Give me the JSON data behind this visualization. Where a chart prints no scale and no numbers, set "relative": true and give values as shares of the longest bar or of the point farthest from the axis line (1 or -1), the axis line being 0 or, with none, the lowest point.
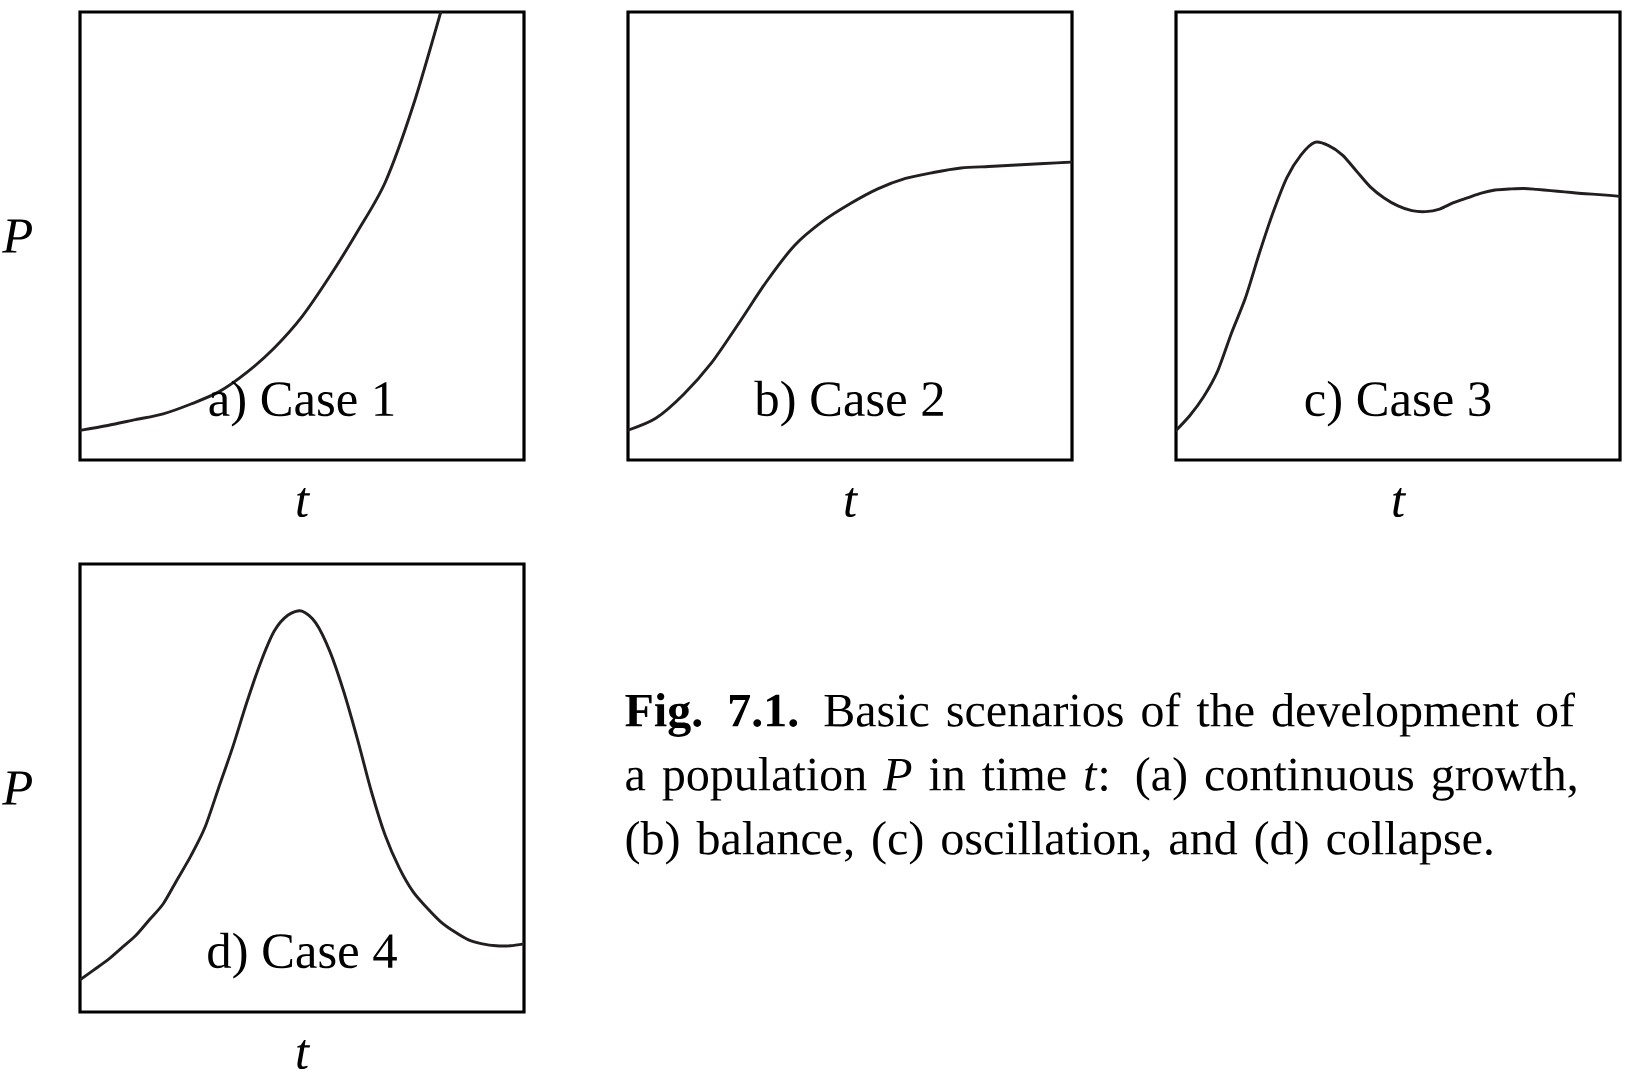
{
  "chart_data": [
    {
      "type": "line",
      "title": "a) Case 1",
      "xlabel": "t",
      "ylabel": "P",
      "relative": true,
      "color": "#231f20",
      "categories": [
        null,
        null,
        null,
        null,
        null,
        null,
        null,
        null,
        null,
        null,
        null,
        null,
        null,
        null,
        null,
        null,
        null
      ],
      "values": [
        0.066,
        0.077,
        0.09,
        0.103,
        0.125,
        0.152,
        0.195,
        0.25,
        0.32,
        0.41,
        0.51,
        0.62,
        0.79,
        1.0,
        null,
        null,
        null
      ]
    },
    {
      "type": "line",
      "title": "b) Case 2",
      "xlabel": "t",
      "relative": true,
      "color": "#231f20",
      "categories": [
        null,
        null,
        null,
        null,
        null,
        null,
        null,
        null,
        null,
        null,
        null,
        null,
        null,
        null,
        null,
        null,
        null
      ],
      "values": [
        0.1,
        0.14,
        0.22,
        0.325,
        0.46,
        0.6,
        0.72,
        0.8,
        0.86,
        0.91,
        0.945,
        0.965,
        0.98,
        0.985,
        0.99,
        0.995,
        1.0
      ]
    },
    {
      "type": "line",
      "title": "c) Case 3",
      "xlabel": "t",
      "relative": true,
      "color": "#231f20",
      "categories": [
        null,
        null,
        null,
        null,
        null,
        null,
        null,
        null,
        null,
        null,
        null,
        null,
        null,
        null,
        null,
        null,
        null,
        null,
        null,
        null,
        null,
        null,
        null,
        null,
        null,
        null,
        null,
        null,
        null,
        null,
        null,
        null,
        null
      ],
      "values": [
        0.093,
        0.14,
        0.2,
        0.28,
        0.4,
        0.51,
        0.65,
        0.78,
        0.89,
        0.96,
        1.0,
        0.99,
        0.96,
        0.91,
        0.86,
        0.825,
        0.8,
        0.785,
        0.782,
        0.79,
        0.81,
        0.825,
        0.84,
        0.85,
        0.853,
        0.855,
        0.852,
        0.848,
        0.844,
        0.84,
        0.837,
        0.834,
        0.83
      ]
    },
    {
      "type": "line",
      "title": "d) Case 4",
      "xlabel": "t",
      "ylabel": "P",
      "relative": true,
      "color": "#231f20",
      "categories": [
        null,
        null,
        null,
        null,
        null,
        null,
        null,
        null,
        null,
        null,
        null,
        null,
        null,
        null,
        null,
        null,
        null,
        null,
        null,
        null,
        null,
        null,
        null,
        null,
        null,
        null,
        null,
        null,
        null,
        null,
        null,
        null,
        null
      ],
      "values": [
        0.08,
        0.105,
        0.13,
        0.16,
        0.19,
        0.23,
        0.27,
        0.33,
        0.39,
        0.46,
        0.56,
        0.66,
        0.77,
        0.87,
        0.95,
        0.99,
        1.0,
        0.97,
        0.9,
        0.8,
        0.68,
        0.55,
        0.44,
        0.36,
        0.3,
        0.26,
        0.225,
        0.2,
        0.18,
        0.17,
        0.165,
        0.165,
        0.17
      ]
    },
    {
      "type": "other",
      "annotations": [
        "**Fig. 7.1.** Basic scenarios of the development of a population *P* in time *t*: (a) continuous growth, (b) balance, (c) oscillation, and (d) collapse."
      ]
    }
  ]
}
